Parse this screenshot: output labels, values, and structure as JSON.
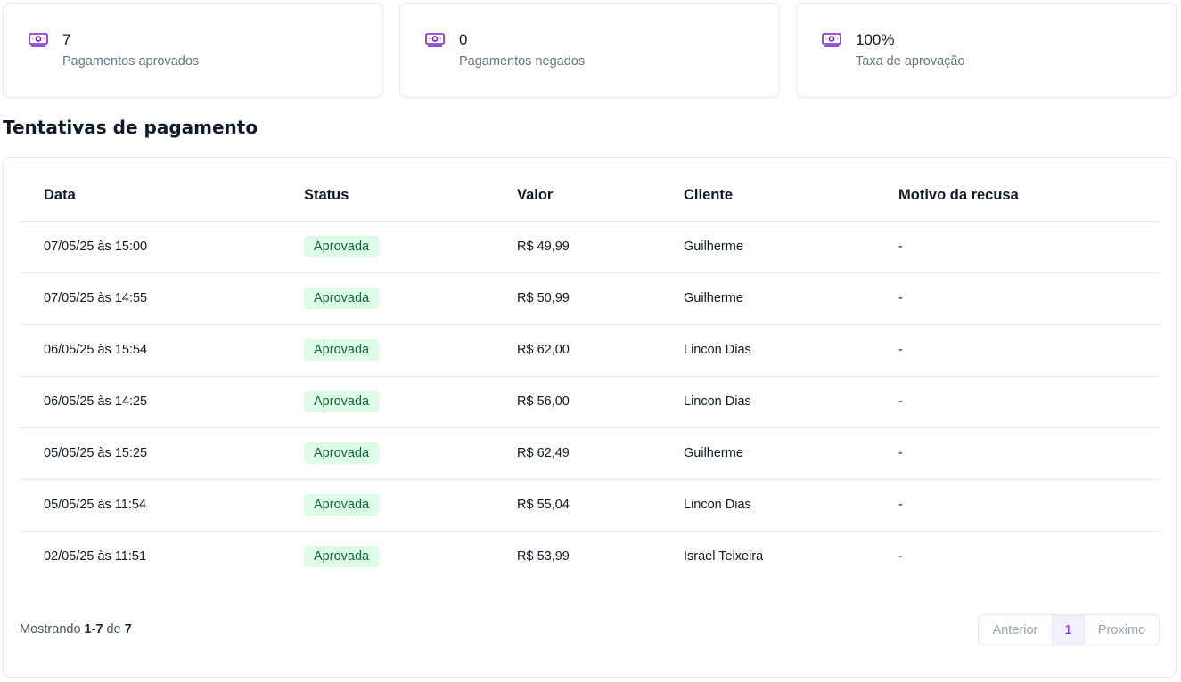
{
  "stats": [
    {
      "icon": "money-icon",
      "value": "7",
      "label": "Pagamentos aprovados"
    },
    {
      "icon": "money-icon",
      "value": "0",
      "label": "Pagamentos negados"
    },
    {
      "icon": "money-icon",
      "value": "100%",
      "label": "Taxa de aprovação"
    }
  ],
  "colors": {
    "accent": "#7e22ce",
    "badge_bg": "#dcfce7",
    "badge_text": "#166534"
  },
  "section_title": "Tentativas de pagamento",
  "table": {
    "headers": {
      "data": "Data",
      "status": "Status",
      "valor": "Valor",
      "cliente": "Cliente",
      "motivo": "Motivo da recusa"
    },
    "rows": [
      {
        "data": "07/05/25 às 15:00",
        "status": "Aprovada",
        "valor": "R$ 49,99",
        "cliente": "Guilherme",
        "motivo": "-"
      },
      {
        "data": "07/05/25 às 14:55",
        "status": "Aprovada",
        "valor": "R$ 50,99",
        "cliente": "Guilherme",
        "motivo": "-"
      },
      {
        "data": "06/05/25 às 15:54",
        "status": "Aprovada",
        "valor": "R$ 62,00",
        "cliente": "Lincon Dias",
        "motivo": "-"
      },
      {
        "data": "06/05/25 às 14:25",
        "status": "Aprovada",
        "valor": "R$ 56,00",
        "cliente": "Lincon Dias",
        "motivo": "-"
      },
      {
        "data": "05/05/25 às 15:25",
        "status": "Aprovada",
        "valor": "R$ 62,49",
        "cliente": "Guilherme",
        "motivo": "-"
      },
      {
        "data": "05/05/25 às 11:54",
        "status": "Aprovada",
        "valor": "R$ 55,04",
        "cliente": "Lincon Dias",
        "motivo": "-"
      },
      {
        "data": "02/05/25 às 11:51",
        "status": "Aprovada",
        "valor": "R$ 53,99",
        "cliente": "Israel Teixeira",
        "motivo": "-"
      }
    ]
  },
  "footer": {
    "prefix": "Mostrando",
    "range": "1-7",
    "of": "de",
    "total": "7"
  },
  "pagination": {
    "prev": "Anterior",
    "current": "1",
    "next": "Proximo"
  }
}
